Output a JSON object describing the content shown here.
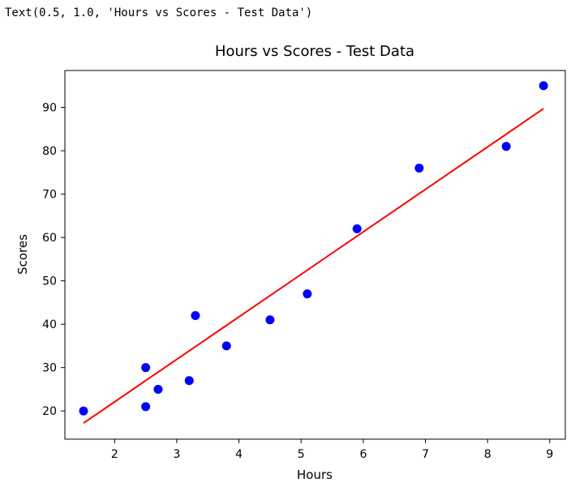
{
  "cell_output": {
    "text": "Text(0.5, 1.0, 'Hours vs Scores - Test Data')"
  },
  "chart_data": {
    "type": "scatter",
    "title": "Hours vs Scores - Test Data",
    "xlabel": "Hours",
    "ylabel": "Scores",
    "xlim": [
      1.2,
      9.25
    ],
    "ylim": [
      13.5,
      98.5
    ],
    "xticks": [
      2,
      3,
      4,
      5,
      6,
      7,
      8,
      9
    ],
    "yticks": [
      20,
      30,
      40,
      50,
      60,
      70,
      80,
      90
    ],
    "grid": false,
    "legend": "none",
    "series": [
      {
        "kind": "scatter",
        "color": "#0000ff",
        "points": [
          {
            "x": 1.5,
            "y": 20
          },
          {
            "x": 2.5,
            "y": 30
          },
          {
            "x": 2.5,
            "y": 21
          },
          {
            "x": 2.7,
            "y": 25
          },
          {
            "x": 3.2,
            "y": 27
          },
          {
            "x": 3.3,
            "y": 42
          },
          {
            "x": 3.8,
            "y": 35
          },
          {
            "x": 4.5,
            "y": 41
          },
          {
            "x": 5.1,
            "y": 47
          },
          {
            "x": 5.9,
            "y": 62
          },
          {
            "x": 6.9,
            "y": 76
          },
          {
            "x": 8.3,
            "y": 81
          },
          {
            "x": 8.9,
            "y": 95
          }
        ]
      },
      {
        "kind": "line",
        "color": "#ff0000",
        "points": [
          {
            "x": 1.5,
            "y": 17.2
          },
          {
            "x": 8.9,
            "y": 89.7
          }
        ]
      }
    ]
  }
}
